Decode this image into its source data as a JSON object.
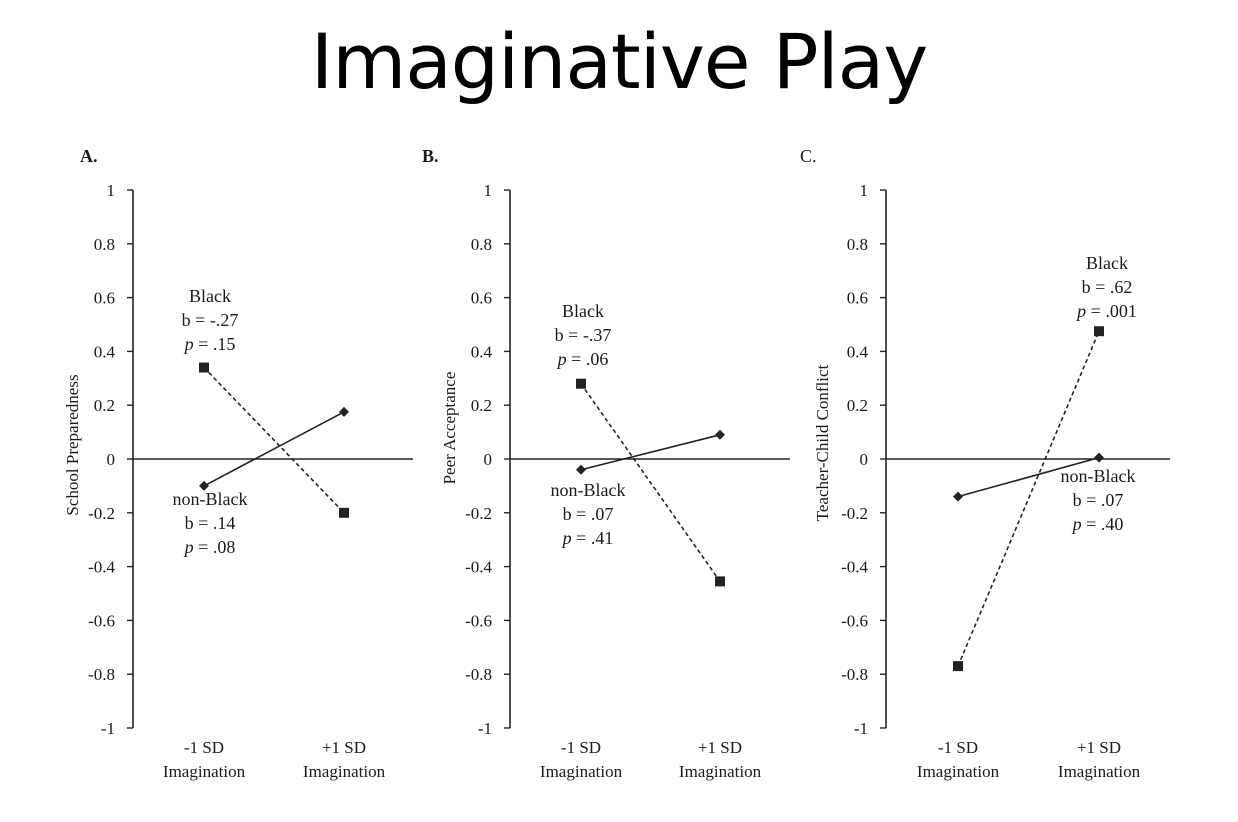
{
  "title": "Imaginative Play",
  "chart_data": [
    {
      "type": "line",
      "panel_label": "A.",
      "ylabel": "School Preparedness",
      "ylim": [
        -1,
        1
      ],
      "yticks": [
        "1",
        "0.8",
        "0.6",
        "0.4",
        "0.2",
        "0",
        "-0.2",
        "-0.4",
        "-0.6",
        "-0.8",
        "-1"
      ],
      "categories": [
        [
          "-1 SD",
          "Imagination"
        ],
        [
          "+1 SD",
          "Imagination"
        ]
      ],
      "series": [
        {
          "name": "Black",
          "values": [
            0.34,
            -0.2
          ],
          "marker": "square",
          "dash": true,
          "annotation": [
            "Black",
            "b = -.27",
            "p = .15"
          ]
        },
        {
          "name": "non-Black",
          "values": [
            -0.1,
            0.175
          ],
          "marker": "diamond",
          "dash": false,
          "annotation": [
            "non-Black",
            "b = .14",
            "p = .08"
          ]
        }
      ]
    },
    {
      "type": "line",
      "panel_label": "B.",
      "ylabel": "Peer Acceptance",
      "ylim": [
        -1,
        1
      ],
      "yticks": [
        "1",
        "0.8",
        "0.6",
        "0.4",
        "0.2",
        "0",
        "-0.2",
        "-0.4",
        "-0.6",
        "-0.8",
        "-1"
      ],
      "categories": [
        [
          "-1 SD",
          "Imagination"
        ],
        [
          "+1 SD",
          "Imagination"
        ]
      ],
      "series": [
        {
          "name": "Black",
          "values": [
            0.28,
            -0.455
          ],
          "marker": "square",
          "dash": true,
          "annotation": [
            "Black",
            "b = -.37",
            "p = .06"
          ]
        },
        {
          "name": "non-Black",
          "values": [
            -0.04,
            0.09
          ],
          "marker": "diamond",
          "dash": false,
          "annotation": [
            "non-Black",
            "b = .07",
            "p = .41"
          ]
        }
      ]
    },
    {
      "type": "line",
      "panel_label": "C.",
      "ylabel": "Teacher-Child Conflict",
      "ylim": [
        -1,
        1
      ],
      "yticks": [
        "1",
        "0.8",
        "0.6",
        "0.4",
        "0.2",
        "0",
        "-0.2",
        "-0.4",
        "-0.6",
        "-0.8",
        "-1"
      ],
      "categories": [
        [
          "-1 SD",
          "Imagination"
        ],
        [
          "+1 SD",
          "Imagination"
        ]
      ],
      "series": [
        {
          "name": "Black",
          "values": [
            -0.77,
            0.475
          ],
          "marker": "square",
          "dash": true,
          "annotation": [
            "Black",
            "b = .62",
            "p = .001"
          ]
        },
        {
          "name": "non-Black",
          "values": [
            -0.14,
            0.005
          ],
          "marker": "diamond",
          "dash": false,
          "annotation": [
            "non-Black",
            "b = .07",
            "p = .40"
          ]
        }
      ]
    }
  ]
}
